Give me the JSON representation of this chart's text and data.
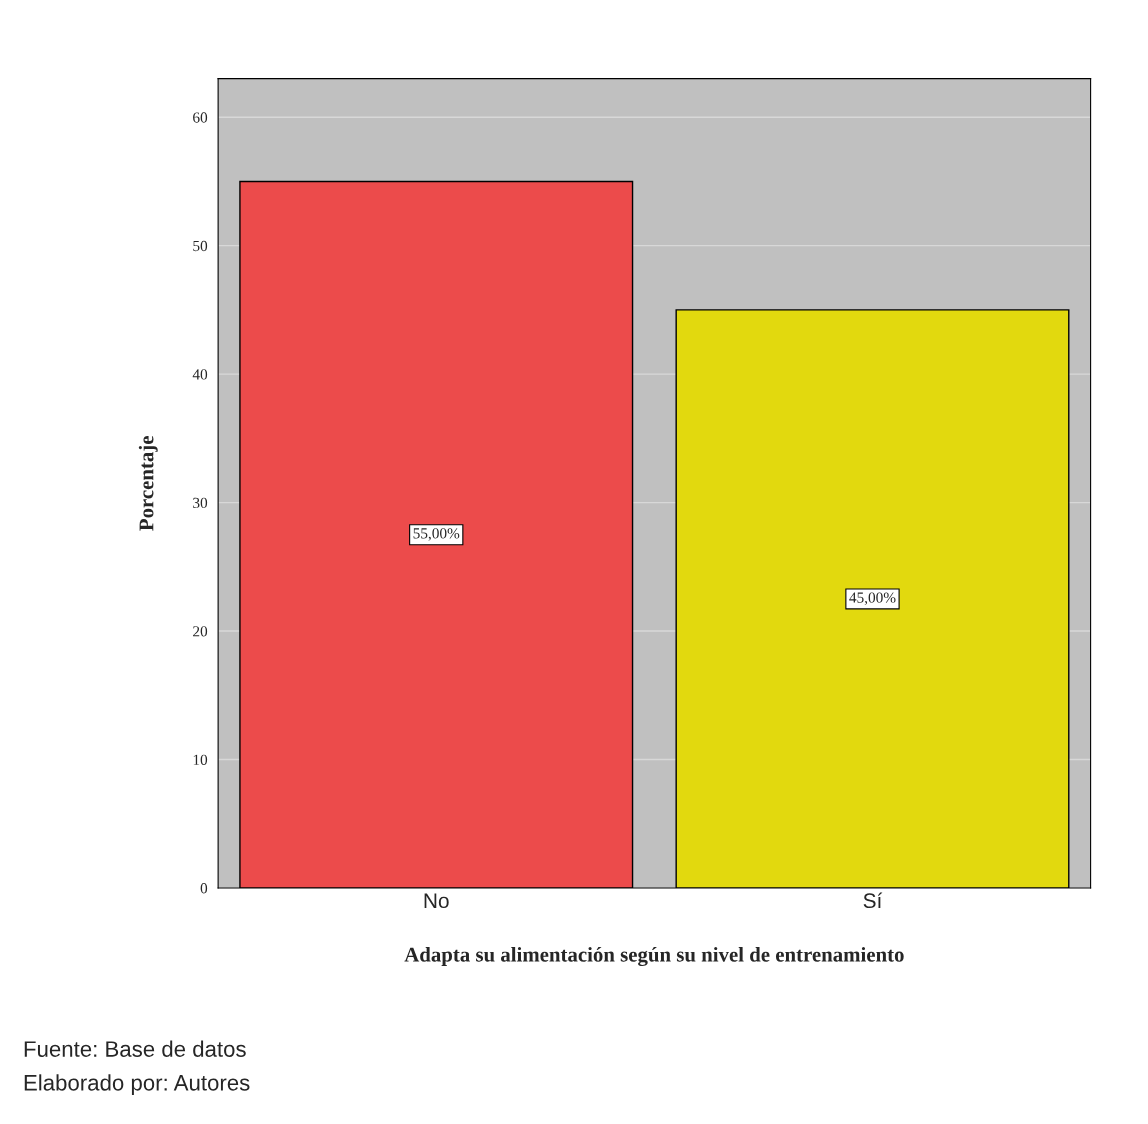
{
  "chart_data": {
    "type": "bar",
    "xlabel": "Adapta su alimentación según su nivel de entrenamiento",
    "ylabel": "Porcentaje",
    "categories": [
      "No",
      "Sí"
    ],
    "values": [
      55,
      45
    ],
    "colors": [
      "#ec4b4b",
      "#e2d90e"
    ],
    "value_labels": [
      "55,00%",
      "45,00%"
    ],
    "ylim": [
      0,
      63
    ],
    "yticks": [
      0,
      10,
      20,
      30,
      40,
      50,
      60
    ],
    "grid": "y",
    "annotations": [
      "Fuente: Base de datos",
      "Elaborado por: Autores"
    ]
  }
}
